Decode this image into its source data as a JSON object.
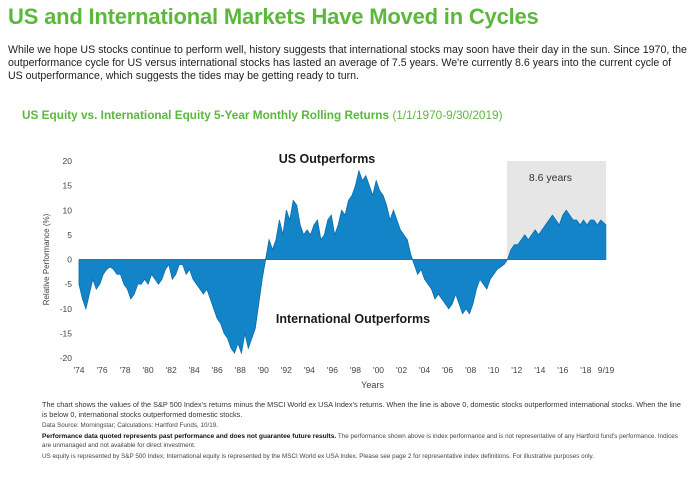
{
  "header": {
    "title": "US and International Markets Have Moved in Cycles",
    "intro": "While we hope US stocks continue to perform well, history suggests that international stocks may soon have their day in the sun. Since 1970, the outperformance cycle for US versus international stocks has lasted an average of 7.5 years. We're currently 8.6 years into the current cycle of US outperformance, which suggests the tides may be getting ready to turn."
  },
  "chart_subtitle": {
    "main": "US Equity vs. International Equity 5-Year Monthly Rolling Returns",
    "range": "(1/1/1970-9/30/2019)"
  },
  "colors": {
    "accent": "#5cb83c",
    "area": "#1384c8",
    "shade": "#e6e6e6"
  },
  "chart_data": {
    "type": "area",
    "title": "US Equity vs. International Equity 5-Year Monthly Rolling Returns",
    "xlabel": "Years",
    "ylabel": "Relative Performance (%)",
    "ylim": [
      -20,
      20
    ],
    "yticks": [
      20,
      15,
      10,
      5,
      0,
      -5,
      -10,
      -15,
      -20
    ],
    "xlim": [
      1974,
      2019.75
    ],
    "xticks": [
      {
        "year": 1974,
        "label": "'74"
      },
      {
        "year": 1976,
        "label": "'76"
      },
      {
        "year": 1978,
        "label": "'78"
      },
      {
        "year": 1980,
        "label": "'80"
      },
      {
        "year": 1982,
        "label": "'82"
      },
      {
        "year": 1984,
        "label": "'84"
      },
      {
        "year": 1986,
        "label": "'86"
      },
      {
        "year": 1988,
        "label": "'88"
      },
      {
        "year": 1990,
        "label": "'90"
      },
      {
        "year": 1992,
        "label": "'92"
      },
      {
        "year": 1994,
        "label": "'94"
      },
      {
        "year": 1996,
        "label": "'96"
      },
      {
        "year": 1998,
        "label": "'98"
      },
      {
        "year": 2000,
        "label": "'00"
      },
      {
        "year": 2002,
        "label": "'02"
      },
      {
        "year": 2004,
        "label": "'04"
      },
      {
        "year": 2006,
        "label": "'06"
      },
      {
        "year": 2008,
        "label": "'08"
      },
      {
        "year": 2010,
        "label": "'10"
      },
      {
        "year": 2012,
        "label": "'12"
      },
      {
        "year": 2014,
        "label": "'14"
      },
      {
        "year": 2016,
        "label": "'16"
      },
      {
        "year": 2018,
        "label": "'18"
      },
      {
        "year": 2019.75,
        "label": "9/19"
      }
    ],
    "series": [
      {
        "name": "S&P 500 Index minus MSCI World ex USA Index 5-year rolling return",
        "points": [
          [
            1974.0,
            -5
          ],
          [
            1974.3,
            -8
          ],
          [
            1974.6,
            -10
          ],
          [
            1974.9,
            -7
          ],
          [
            1975.2,
            -4
          ],
          [
            1975.5,
            -6
          ],
          [
            1975.8,
            -5
          ],
          [
            1976.1,
            -3
          ],
          [
            1976.4,
            -2
          ],
          [
            1976.7,
            -1.5
          ],
          [
            1977.0,
            -2
          ],
          [
            1977.3,
            -3
          ],
          [
            1977.6,
            -3
          ],
          [
            1977.9,
            -5
          ],
          [
            1978.2,
            -6
          ],
          [
            1978.5,
            -8
          ],
          [
            1978.8,
            -7
          ],
          [
            1979.1,
            -5
          ],
          [
            1979.4,
            -5
          ],
          [
            1979.7,
            -4
          ],
          [
            1980.0,
            -5
          ],
          [
            1980.3,
            -3
          ],
          [
            1980.6,
            -4
          ],
          [
            1980.9,
            -5
          ],
          [
            1981.2,
            -4
          ],
          [
            1981.5,
            -2
          ],
          [
            1981.8,
            -1
          ],
          [
            1982.1,
            -4
          ],
          [
            1982.4,
            -3
          ],
          [
            1982.7,
            -1
          ],
          [
            1983.0,
            -1
          ],
          [
            1983.3,
            -3
          ],
          [
            1983.6,
            -2
          ],
          [
            1983.9,
            -4
          ],
          [
            1984.2,
            -5
          ],
          [
            1984.5,
            -6
          ],
          [
            1984.8,
            -7
          ],
          [
            1985.1,
            -6
          ],
          [
            1985.4,
            -8
          ],
          [
            1985.7,
            -10
          ],
          [
            1986.0,
            -12
          ],
          [
            1986.3,
            -13
          ],
          [
            1986.6,
            -15
          ],
          [
            1986.9,
            -16
          ],
          [
            1987.2,
            -18
          ],
          [
            1987.5,
            -19
          ],
          [
            1987.8,
            -17
          ],
          [
            1988.1,
            -19
          ],
          [
            1988.4,
            -15
          ],
          [
            1988.7,
            -18
          ],
          [
            1989.0,
            -16
          ],
          [
            1989.3,
            -14
          ],
          [
            1989.6,
            -9
          ],
          [
            1989.9,
            -4
          ],
          [
            1990.2,
            0
          ],
          [
            1990.5,
            4
          ],
          [
            1990.8,
            2
          ],
          [
            1991.1,
            4
          ],
          [
            1991.4,
            8
          ],
          [
            1991.7,
            5
          ],
          [
            1992.0,
            10
          ],
          [
            1992.3,
            8
          ],
          [
            1992.6,
            12
          ],
          [
            1992.9,
            11
          ],
          [
            1993.2,
            7
          ],
          [
            1993.5,
            5
          ],
          [
            1993.8,
            6
          ],
          [
            1994.1,
            5
          ],
          [
            1994.4,
            7
          ],
          [
            1994.7,
            8
          ],
          [
            1995.0,
            4
          ],
          [
            1995.3,
            5
          ],
          [
            1995.6,
            8
          ],
          [
            1995.9,
            9
          ],
          [
            1996.2,
            5
          ],
          [
            1996.5,
            7
          ],
          [
            1996.8,
            10
          ],
          [
            1997.1,
            9
          ],
          [
            1997.4,
            12
          ],
          [
            1997.7,
            13
          ],
          [
            1998.0,
            15
          ],
          [
            1998.3,
            18
          ],
          [
            1998.6,
            16
          ],
          [
            1998.9,
            17
          ],
          [
            1999.2,
            15
          ],
          [
            1999.5,
            13
          ],
          [
            1999.8,
            16
          ],
          [
            2000.1,
            14
          ],
          [
            2000.4,
            13
          ],
          [
            2000.7,
            11
          ],
          [
            2001.0,
            8
          ],
          [
            2001.3,
            10
          ],
          [
            2001.6,
            8
          ],
          [
            2001.9,
            6
          ],
          [
            2002.2,
            5
          ],
          [
            2002.5,
            4
          ],
          [
            2002.8,
            1
          ],
          [
            2003.1,
            -1
          ],
          [
            2003.4,
            -3
          ],
          [
            2003.7,
            -2
          ],
          [
            2004.0,
            -4
          ],
          [
            2004.3,
            -5
          ],
          [
            2004.6,
            -6
          ],
          [
            2004.9,
            -8
          ],
          [
            2005.2,
            -7
          ],
          [
            2005.5,
            -8
          ],
          [
            2005.8,
            -9
          ],
          [
            2006.1,
            -10
          ],
          [
            2006.4,
            -9
          ],
          [
            2006.7,
            -7
          ],
          [
            2007.0,
            -9
          ],
          [
            2007.3,
            -11
          ],
          [
            2007.6,
            -10
          ],
          [
            2007.9,
            -11
          ],
          [
            2008.2,
            -9
          ],
          [
            2008.5,
            -6
          ],
          [
            2008.8,
            -4
          ],
          [
            2009.1,
            -5
          ],
          [
            2009.4,
            -6
          ],
          [
            2009.7,
            -4
          ],
          [
            2010.0,
            -3
          ],
          [
            2010.3,
            -2
          ],
          [
            2010.6,
            -1.5
          ],
          [
            2010.9,
            -1
          ],
          [
            2011.2,
            0
          ],
          [
            2011.5,
            2
          ],
          [
            2011.8,
            3
          ],
          [
            2012.1,
            3
          ],
          [
            2012.4,
            4
          ],
          [
            2012.7,
            5
          ],
          [
            2013.0,
            4
          ],
          [
            2013.3,
            5
          ],
          [
            2013.6,
            6
          ],
          [
            2013.9,
            5
          ],
          [
            2014.2,
            6
          ],
          [
            2014.5,
            7
          ],
          [
            2014.8,
            8
          ],
          [
            2015.1,
            9
          ],
          [
            2015.4,
            8
          ],
          [
            2015.7,
            7
          ],
          [
            2016.0,
            9
          ],
          [
            2016.3,
            10
          ],
          [
            2016.6,
            9
          ],
          [
            2016.9,
            8
          ],
          [
            2017.2,
            8
          ],
          [
            2017.5,
            7
          ],
          [
            2017.8,
            8
          ],
          [
            2018.1,
            7
          ],
          [
            2018.4,
            8
          ],
          [
            2018.7,
            8
          ],
          [
            2019.0,
            7
          ],
          [
            2019.3,
            8
          ],
          [
            2019.75,
            7
          ]
        ]
      }
    ],
    "shaded_region": {
      "from": 2011.15,
      "to": 2019.75,
      "label": "8.6 years"
    },
    "annotations": {
      "top": "US Outperforms",
      "bottom": "International Outperforms"
    }
  },
  "footnotes": {
    "description": "The chart shows the values of the S&P 500 Index's returns minus the MSCI World ex USA Index's returns. When the line is above 0, domestic stocks outperformed international stocks. When the line is below 0, international stocks outperformed domestic stocks.",
    "source": "Data Source: Morningstar; Calculations: Hartford Funds, 10/19.",
    "disclaimer_bold": "Performance data quoted represents past performance and does not guarantee future results.",
    "disclaimer_rest": " The performance shown above is index performance and is not representative of any Hartford fund's performance. Indices are unmanaged and not available for direct investment.",
    "definitions": "US equity is represented by S&P 500 Index; International equity is represented by the MSCI World ex USA Index. Please see page 2 for representative index definitions. For illustrative purposes only."
  }
}
